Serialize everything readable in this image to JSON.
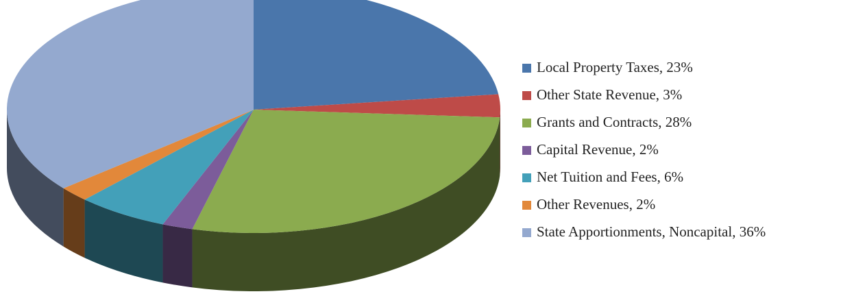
{
  "chart_data": {
    "type": "pie3d",
    "categories": [
      "Local Property Taxes, 23%",
      "Other State Revenue, 3%",
      "Grants and Contracts, 28%",
      "Capital Revenue, 2%",
      "Net Tuition and Fees, 6%",
      "Other Revenues, 2%",
      "State Apportionments, Noncapital, 36%"
    ],
    "values": [
      23,
      3,
      28,
      2,
      6,
      2,
      36
    ],
    "colors": [
      "#4a76ab",
      "#be4b48",
      "#8bab4f",
      "#7c5c9a",
      "#43a0b9",
      "#e2883a",
      "#94a9cf"
    ],
    "legend": "right"
  }
}
